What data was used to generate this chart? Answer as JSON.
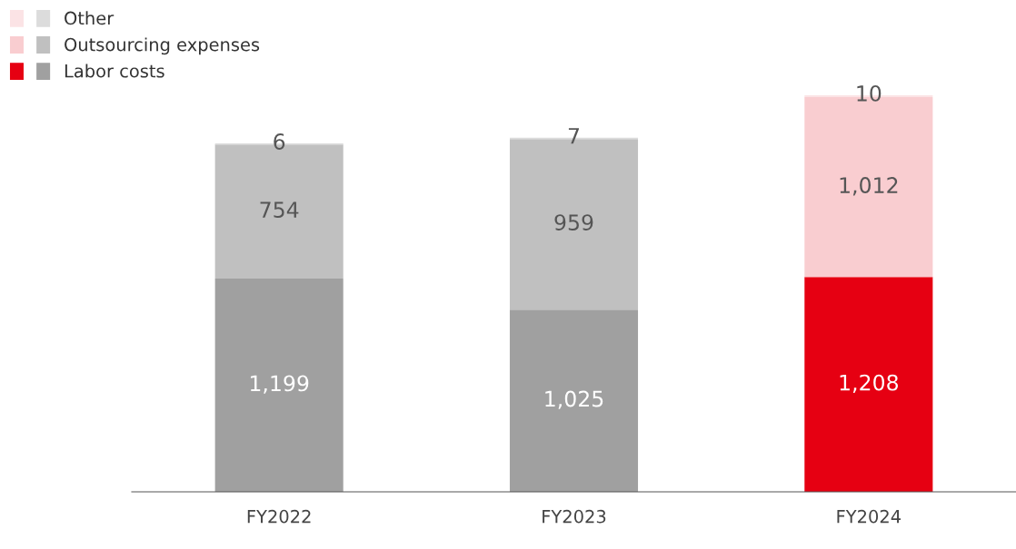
{
  "chart_data": {
    "type": "bar",
    "stacked": true,
    "categories": [
      "FY2022",
      "FY2023",
      "FY2024"
    ],
    "series": [
      {
        "name": "Labor costs",
        "colors": [
          "#a0a0a0",
          "#a0a0a0",
          "#e60012"
        ],
        "values": [
          1199,
          1025,
          1208
        ],
        "value_labels": [
          "1,199",
          "1,025",
          "1,208"
        ]
      },
      {
        "name": "Outsourcing expenses",
        "colors": [
          "#c0c0c0",
          "#c0c0c0",
          "#f9cdd0"
        ],
        "values": [
          754,
          959,
          1012
        ],
        "value_labels": [
          "754",
          "959",
          "1,012"
        ]
      },
      {
        "name": "Other",
        "colors": [
          "#dcdcdc",
          "#dcdcdc",
          "#fbe3e5"
        ],
        "values": [
          6,
          7,
          10
        ],
        "value_labels": [
          "6",
          "7",
          "10"
        ]
      }
    ],
    "legend": "top left",
    "grid": false
  }
}
